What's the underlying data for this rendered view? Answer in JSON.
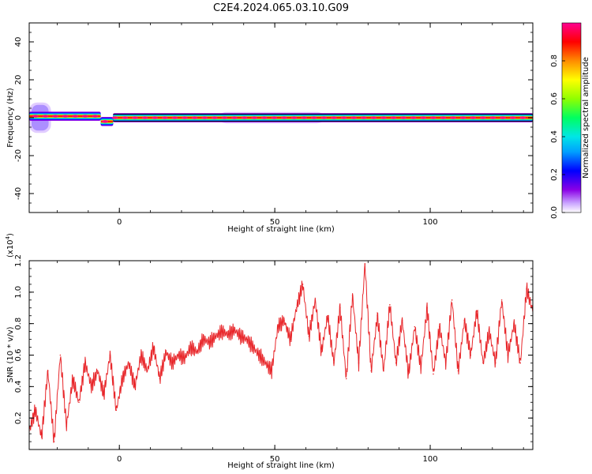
{
  "title": "C2E4.2024.065.03.10.G09",
  "chart_data": [
    {
      "type": "heatmap",
      "xlabel": "Height of straight line (km)",
      "ylabel": "Frequency (Hz)",
      "xlim": [
        -29,
        133
      ],
      "ylim": [
        -50,
        50
      ],
      "xticks": [
        0,
        50,
        100
      ],
      "yticks": [
        -40,
        -20,
        0,
        20,
        40
      ],
      "colorbar": {
        "label": "Normalized spectral amplitude",
        "range": [
          0,
          1
        ],
        "ticks": [
          "0.0",
          "0.2",
          "0.4",
          "0.6",
          "0.8"
        ],
        "colors": [
          "#ffffff",
          "#8a00e6",
          "#0000ff",
          "#00c8ff",
          "#00ff80",
          "#9aff00",
          "#ffff00",
          "#ff8000",
          "#ff0000",
          "#ff0090"
        ]
      },
      "ridge_frequency_hz": 0,
      "ridge_segments": [
        {
          "x_start": -29,
          "x_end": -6,
          "freq": 0.8,
          "amp": 0.75
        },
        {
          "x_start": -6,
          "x_end": -2,
          "freq": -2.0,
          "amp": 0.9
        },
        {
          "x_start": -2,
          "x_end": 133,
          "freq": 0.0,
          "amp": 0.95
        }
      ],
      "spread_regions": [
        {
          "x_start": -29,
          "x_end": -22,
          "freq_halfwidth": 8,
          "amp": 0.5
        },
        {
          "x_start": 32,
          "x_end": 66,
          "freq_halfwidth": 3,
          "amp": 0.35
        }
      ]
    },
    {
      "type": "line",
      "xlabel": "Height of straight line (km)",
      "ylabel": "SNR (10 * v/v)",
      "yscale_label": "(x10",
      "yscale_exp": "4",
      "yscale_close": ")",
      "xlim": [
        -29,
        133
      ],
      "ylim": [
        0.0,
        1.2
      ],
      "xticks": [
        0,
        50,
        100
      ],
      "yticks": [
        0.2,
        0.4,
        0.6,
        0.8,
        1.0,
        1.2
      ],
      "yticklabels": [
        "0.2",
        "0.4",
        "0.6",
        "0.8",
        "1.0",
        "1.2"
      ],
      "color": "#e8262a",
      "x": [
        -29,
        -27,
        -25,
        -23,
        -21,
        -19,
        -17,
        -15,
        -13,
        -11,
        -9,
        -7,
        -5,
        -3,
        -1,
        1,
        3,
        5,
        7,
        9,
        11,
        13,
        15,
        17,
        19,
        21,
        23,
        25,
        27,
        29,
        31,
        33,
        35,
        37,
        39,
        41,
        43,
        45,
        47,
        49,
        51,
        53,
        55,
        57,
        59,
        61,
        63,
        65,
        67,
        69,
        71,
        73,
        75,
        77,
        79,
        81,
        83,
        85,
        87,
        89,
        91,
        93,
        95,
        97,
        99,
        101,
        103,
        105,
        107,
        109,
        111,
        113,
        115,
        117,
        119,
        121,
        123,
        125,
        127,
        129,
        131,
        133
      ],
      "y": [
        0.12,
        0.25,
        0.08,
        0.5,
        0.05,
        0.6,
        0.15,
        0.45,
        0.3,
        0.55,
        0.4,
        0.5,
        0.35,
        0.6,
        0.25,
        0.45,
        0.55,
        0.4,
        0.6,
        0.5,
        0.65,
        0.45,
        0.62,
        0.55,
        0.6,
        0.58,
        0.65,
        0.62,
        0.7,
        0.68,
        0.72,
        0.75,
        0.73,
        0.76,
        0.72,
        0.7,
        0.65,
        0.6,
        0.55,
        0.5,
        0.78,
        0.82,
        0.7,
        0.9,
        1.05,
        0.72,
        0.95,
        0.62,
        0.85,
        0.55,
        0.9,
        0.45,
        0.98,
        0.55,
        1.18,
        0.5,
        0.85,
        0.5,
        0.92,
        0.55,
        0.82,
        0.48,
        0.78,
        0.52,
        0.9,
        0.48,
        0.78,
        0.55,
        0.95,
        0.5,
        0.82,
        0.6,
        0.88,
        0.55,
        0.75,
        0.55,
        0.95,
        0.6,
        0.8,
        0.55,
        1.02,
        0.88
      ]
    }
  ]
}
